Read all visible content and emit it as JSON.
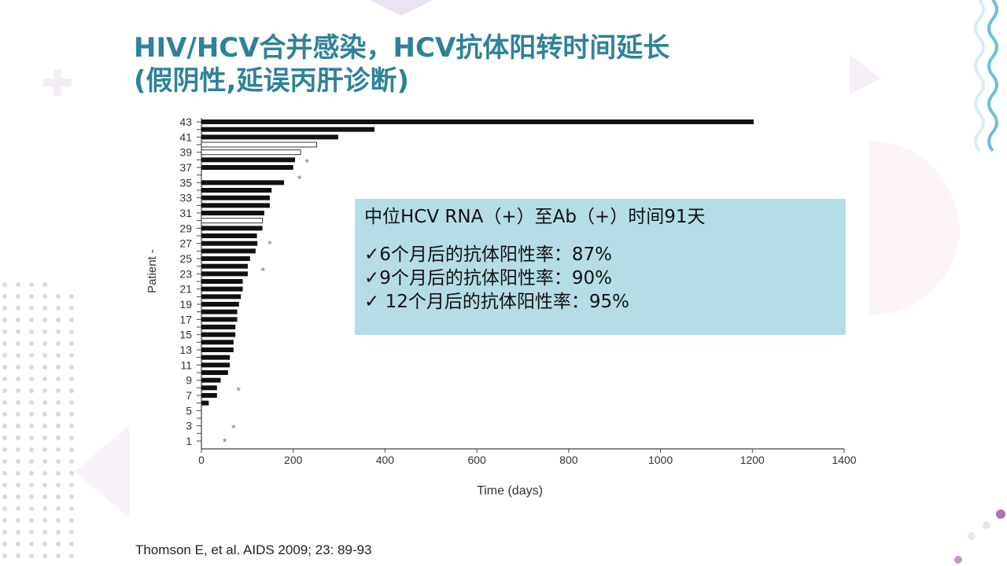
{
  "slide": {
    "title_line1": "HIV/HCV合并感染，HCV抗体阳转时间延长",
    "title_line2": "(假阴性,延误丙肝诊断)",
    "info_box": {
      "line1": "中位HCV RNA（+）至Ab（+）时间91天",
      "line2": "✓6个月后的抗体阳性率：87%",
      "line3": "✓9个月后的抗体阳性率：90%",
      "line4": "✓ 12个月后的抗体阳性率：95%"
    },
    "citation": "Thomson E, et al. AIDS 2009; 23: 89-93",
    "colors": {
      "title": "#2e8299",
      "info_box_bg": "#b5dde6",
      "bar_fill": "#111111",
      "open_bar_fill": "#ffffff"
    }
  },
  "chart_data": {
    "type": "bar",
    "orientation": "horizontal",
    "xlabel": "Time (days)",
    "ylabel": "Patient -",
    "xlim": [
      0,
      1400
    ],
    "xticks": [
      0,
      200,
      400,
      600,
      800,
      1000,
      1200,
      1400
    ],
    "ylim": [
      1,
      43
    ],
    "yticks": [
      1,
      3,
      5,
      7,
      9,
      11,
      13,
      15,
      17,
      19,
      21,
      23,
      25,
      27,
      29,
      31,
      33,
      35,
      37,
      39,
      41,
      43
    ],
    "grid": false,
    "bars": [
      {
        "patient": 43,
        "days": 1203,
        "style": "filled"
      },
      {
        "patient": 42,
        "days": 377,
        "style": "filled"
      },
      {
        "patient": 41,
        "days": 298,
        "style": "filled"
      },
      {
        "patient": 40,
        "days": 251,
        "style": "open"
      },
      {
        "patient": 39,
        "days": 216,
        "style": "open"
      },
      {
        "patient": 38,
        "days": 204,
        "style": "filled"
      },
      {
        "patient": 37,
        "days": 200,
        "style": "filled"
      },
      {
        "patient": 35,
        "days": 180,
        "style": "filled"
      },
      {
        "patient": 34,
        "days": 153,
        "style": "filled"
      },
      {
        "patient": 33,
        "days": 149,
        "style": "filled"
      },
      {
        "patient": 32,
        "days": 149,
        "style": "filled"
      },
      {
        "patient": 31,
        "days": 137,
        "style": "filled"
      },
      {
        "patient": 30,
        "days": 133,
        "style": "open"
      },
      {
        "patient": 29,
        "days": 133,
        "style": "filled"
      },
      {
        "patient": 28,
        "days": 121,
        "style": "filled"
      },
      {
        "patient": 27,
        "days": 122,
        "style": "filled"
      },
      {
        "patient": 26,
        "days": 118,
        "style": "filled"
      },
      {
        "patient": 25,
        "days": 106,
        "style": "filled"
      },
      {
        "patient": 24,
        "days": 101,
        "style": "filled"
      },
      {
        "patient": 23,
        "days": 101,
        "style": "filled"
      },
      {
        "patient": 22,
        "days": 90,
        "style": "filled"
      },
      {
        "patient": 21,
        "days": 90,
        "style": "filled"
      },
      {
        "patient": 20,
        "days": 86,
        "style": "filled"
      },
      {
        "patient": 19,
        "days": 82,
        "style": "filled"
      },
      {
        "patient": 18,
        "days": 78,
        "style": "filled"
      },
      {
        "patient": 17,
        "days": 78,
        "style": "filled"
      },
      {
        "patient": 16,
        "days": 74,
        "style": "filled"
      },
      {
        "patient": 15,
        "days": 74,
        "style": "filled"
      },
      {
        "patient": 14,
        "days": 70,
        "style": "filled"
      },
      {
        "patient": 13,
        "days": 70,
        "style": "filled"
      },
      {
        "patient": 12,
        "days": 62,
        "style": "filled"
      },
      {
        "patient": 11,
        "days": 62,
        "style": "filled"
      },
      {
        "patient": 10,
        "days": 58,
        "style": "filled"
      },
      {
        "patient": 9,
        "days": 42,
        "style": "filled"
      },
      {
        "patient": 8,
        "days": 34,
        "style": "filled"
      },
      {
        "patient": 7,
        "days": 34,
        "style": "filled"
      },
      {
        "patient": 6,
        "days": 16,
        "style": "filled"
      }
    ],
    "asterisks": [
      {
        "patient": 37.8,
        "days": 230
      },
      {
        "patient": 35.6,
        "days": 214
      },
      {
        "patient": 27,
        "days": 149
      },
      {
        "patient": 23.5,
        "days": 134
      },
      {
        "patient": 7.7,
        "days": 81
      },
      {
        "patient": 2.8,
        "days": 70
      },
      {
        "patient": 1,
        "days": 51
      }
    ]
  }
}
